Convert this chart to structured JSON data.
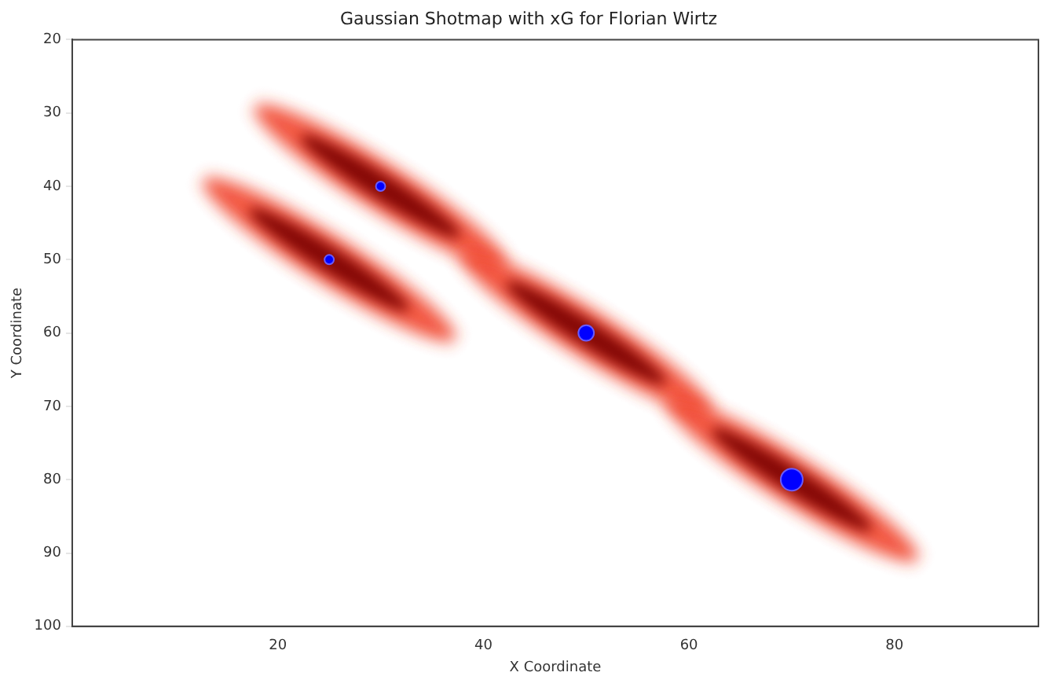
{
  "chart_data": {
    "type": "bubble",
    "title": "Gaussian Shotmap with xG for Florian Wirtz",
    "xlabel": "X Coordinate",
    "ylabel": "Y Coordinate",
    "x": [
      25,
      30,
      50,
      70
    ],
    "values": [
      50,
      40,
      60,
      80
    ],
    "sizes": [
      0.18,
      0.18,
      0.5,
      1
    ],
    "color": "#0000ff",
    "xlim": [
      0,
      94
    ],
    "xticks": [
      20,
      40,
      60,
      80
    ],
    "ylim": [
      100,
      20
    ],
    "yticks": [
      20,
      30,
      40,
      50,
      60,
      70,
      80,
      90,
      100
    ],
    "grid": false,
    "legend": false
  }
}
